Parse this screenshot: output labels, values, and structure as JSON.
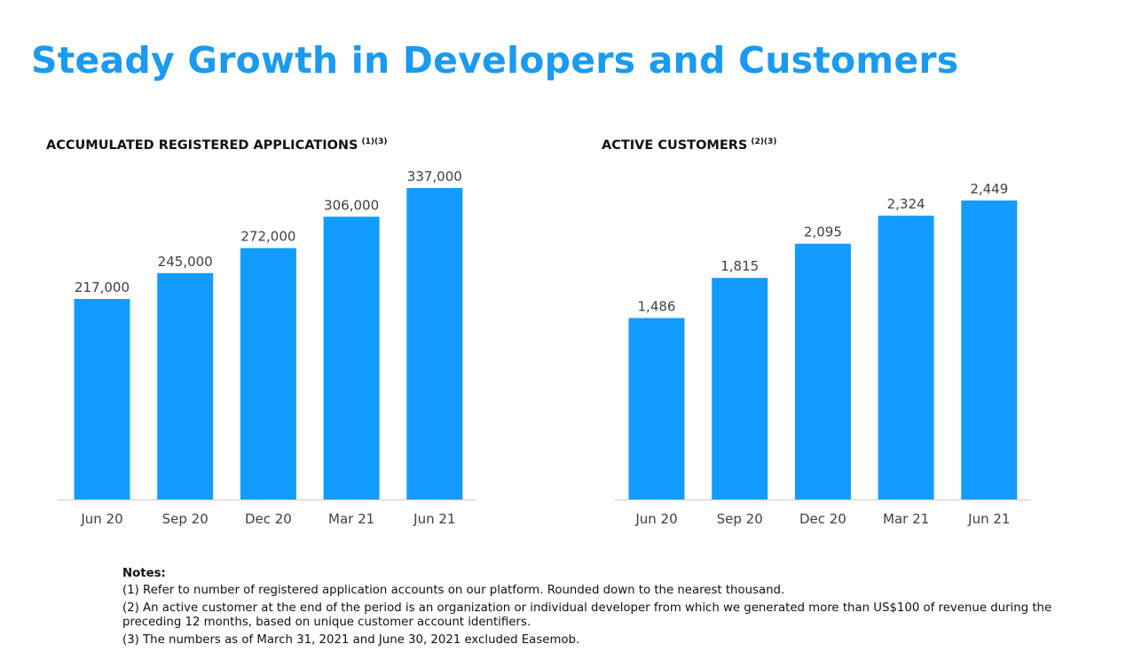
{
  "title": "Steady Growth in Developers and Customers",
  "colors": {
    "title": "#1a9af0",
    "bar": "#139cff",
    "axis": "#cccccc",
    "label": "#404040"
  },
  "chart_data": [
    {
      "type": "bar",
      "title": "ACCUMULATED REGISTERED APPLICATIONS",
      "title_notes": "(1)(3)",
      "categories": [
        "Jun 20",
        "Sep 20",
        "Dec 20",
        "Mar 21",
        "Jun 21"
      ],
      "values": [
        217000,
        245000,
        272000,
        306000,
        337000
      ],
      "data_labels": [
        "217,000",
        "245,000",
        "272,000",
        "306,000",
        "337,000"
      ],
      "ylim": [
        0,
        337000
      ],
      "grid": false
    },
    {
      "type": "bar",
      "title": "ACTIVE CUSTOMERS",
      "title_notes": "(2)(3)",
      "categories": [
        "Jun 20",
        "Sep 20",
        "Dec 20",
        "Mar 21",
        "Jun 21"
      ],
      "values": [
        1486,
        1815,
        2095,
        2324,
        2449
      ],
      "data_labels": [
        "1,486",
        "1,815",
        "2,095",
        "2,324",
        "2,449"
      ],
      "ylim": [
        0,
        2449
      ],
      "grid": false
    }
  ],
  "notes": {
    "heading": "Notes:",
    "items": [
      "(1) Refer to number of registered application accounts on our platform. Rounded down to the nearest thousand.",
      "(2) An active customer at the end of the period is an organization or individual developer from which we generated more than US$100 of revenue during the preceding 12 months, based on unique customer account identifiers.",
      "(3) The numbers as of March 31, 2021 and June 30, 2021 excluded Easemob."
    ]
  }
}
